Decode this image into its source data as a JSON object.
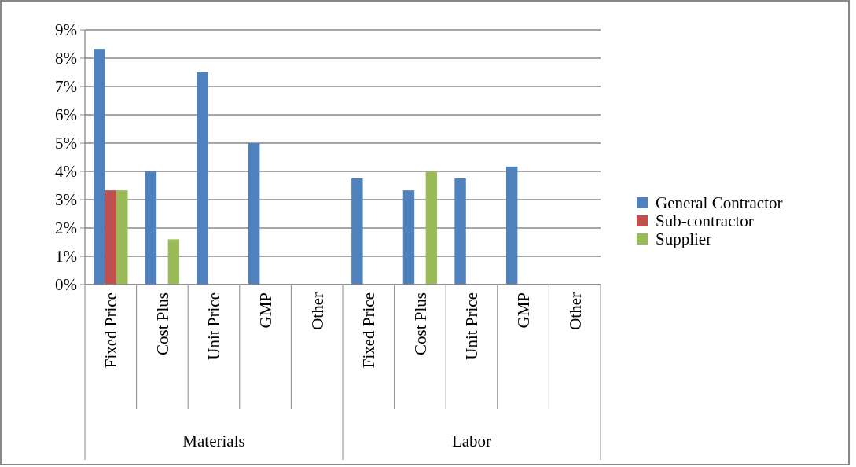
{
  "chart_data": {
    "type": "bar",
    "categories": [
      "Fixed Price",
      "Cost Plus",
      "Unit Price",
      "GMP",
      "Other",
      "Fixed Price",
      "Cost Plus",
      "Unit Price",
      "GMP",
      "Other"
    ],
    "annotations": [
      "Materials",
      "Labor"
    ],
    "series": [
      {
        "name": "General Contractor",
        "color": "#4f81bd",
        "values": [
          8.33,
          4.0,
          7.5,
          5.0,
          null,
          3.75,
          3.33,
          3.75,
          4.17,
          null
        ]
      },
      {
        "name": "Sub-contractor",
        "color": "#c0504d",
        "values": [
          3.33,
          null,
          null,
          null,
          null,
          null,
          null,
          null,
          null,
          null
        ]
      },
      {
        "name": "Supplier",
        "color": "#9bbb59",
        "values": [
          3.33,
          1.6,
          null,
          null,
          null,
          null,
          4.0,
          null,
          null,
          null
        ]
      }
    ],
    "ylim": [
      0,
      9
    ],
    "yticks": [
      {
        "value": 0,
        "label": "0%"
      },
      {
        "value": 1,
        "label": "1%"
      },
      {
        "value": 2,
        "label": "2%"
      },
      {
        "value": 3,
        "label": "3%"
      },
      {
        "value": 4,
        "label": "4%"
      },
      {
        "value": 5,
        "label": "5%"
      },
      {
        "value": 6,
        "label": "6%"
      },
      {
        "value": 7,
        "label": "7%"
      },
      {
        "value": 8,
        "label": "8%"
      },
      {
        "value": 9,
        "label": "9%"
      }
    ],
    "grid": "y",
    "legend": "right"
  }
}
